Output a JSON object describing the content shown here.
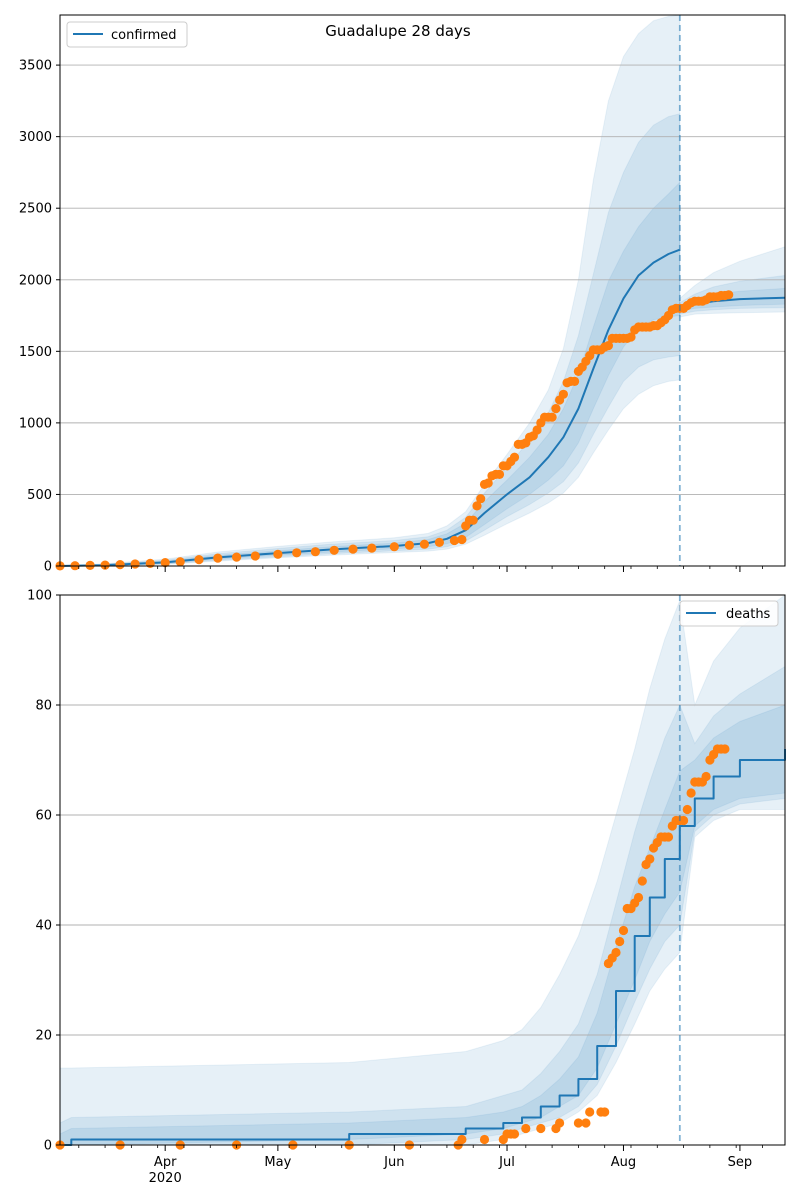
{
  "figure_title": "Guadalupe 28 days",
  "x_ticks": [
    {
      "label": "Apr",
      "date": "2020-04-01"
    },
    {
      "label": "May",
      "date": "2020-05-01"
    },
    {
      "label": "Jun",
      "date": "2020-06-01"
    },
    {
      "label": "Jul",
      "date": "2020-07-01"
    },
    {
      "label": "Aug",
      "date": "2020-08-01"
    },
    {
      "label": "Sep",
      "date": "2020-09-01"
    }
  ],
  "x_year_label": "2020",
  "colors": {
    "model": "#1f77b4",
    "observed": "#ff7f0e",
    "grid": "#b0b0b0"
  },
  "chart_data": [
    {
      "type": "line",
      "legend": "confirmed",
      "legend_position": "top-left",
      "xlim": [
        "2020-03-04",
        "2020-09-13"
      ],
      "ylim": [
        0,
        3850
      ],
      "y_ticks": [
        0,
        500,
        1000,
        1500,
        2000,
        2500,
        3000,
        3500
      ],
      "grid": "horizontal",
      "forecast_start": "2020-08-16",
      "model_median": {
        "x": [
          "2020-03-04",
          "2020-03-15",
          "2020-04-01",
          "2020-04-15",
          "2020-05-01",
          "2020-05-15",
          "2020-06-01",
          "2020-06-10",
          "2020-06-15",
          "2020-06-20",
          "2020-06-25",
          "2020-07-01",
          "2020-07-07",
          "2020-07-12",
          "2020-07-16",
          "2020-07-20",
          "2020-07-24",
          "2020-07-28",
          "2020-08-01",
          "2020-08-05",
          "2020-08-09",
          "2020-08-13",
          "2020-08-16"
        ],
        "y": [
          0,
          5,
          25,
          60,
          90,
          115,
          140,
          160,
          190,
          250,
          370,
          500,
          620,
          760,
          900,
          1100,
          1380,
          1650,
          1870,
          2030,
          2120,
          2180,
          2210
        ]
      },
      "model_bands": [
        {
          "lower": [
            0,
            3,
            18,
            48,
            75,
            97,
            120,
            135,
            155,
            200,
            290,
            400,
            500,
            600,
            700,
            860,
            1100,
            1330,
            1530,
            1660,
            1720,
            1740,
            1750
          ],
          "upper": [
            2,
            8,
            33,
            74,
            107,
            135,
            160,
            185,
            225,
            300,
            450,
            600,
            760,
            920,
            1100,
            1340,
            1670,
            1990,
            2200,
            2370,
            2500,
            2600,
            2680
          ]
        },
        {
          "lower": [
            0,
            2,
            14,
            40,
            65,
            85,
            106,
            118,
            135,
            175,
            250,
            345,
            430,
            510,
            590,
            720,
            920,
            1110,
            1290,
            1390,
            1440,
            1460,
            1470
          ],
          "upper": [
            3,
            11,
            40,
            86,
            122,
            152,
            178,
            205,
            250,
            340,
            510,
            690,
            880,
            1070,
            1290,
            1610,
            2040,
            2470,
            2750,
            2960,
            3080,
            3140,
            3160
          ]
        },
        {
          "lower": [
            0,
            1,
            11,
            34,
            57,
            75,
            94,
            104,
            118,
            152,
            215,
            295,
            370,
            440,
            510,
            620,
            790,
            950,
            1100,
            1200,
            1260,
            1290,
            1300
          ],
          "upper": [
            4,
            14,
            48,
            98,
            137,
            168,
            197,
            228,
            280,
            380,
            570,
            780,
            1000,
            1230,
            1520,
            2000,
            2700,
            3250,
            3560,
            3720,
            3810,
            3840,
            3850
          ]
        }
      ],
      "forecast_median": {
        "x": [
          "2020-08-16",
          "2020-08-20",
          "2020-08-25",
          "2020-09-01",
          "2020-09-13"
        ],
        "y": [
          1800,
          1830,
          1850,
          1865,
          1875
        ]
      },
      "forecast_bands": [
        {
          "lower": [
            1780,
            1800,
            1810,
            1820,
            1830
          ],
          "upper": [
            1820,
            1870,
            1900,
            1920,
            1940
          ]
        },
        {
          "lower": [
            1760,
            1780,
            1790,
            1800,
            1805
          ],
          "upper": [
            1840,
            1900,
            1950,
            1990,
            2030
          ]
        },
        {
          "lower": [
            1740,
            1760,
            1765,
            1770,
            1775
          ],
          "upper": [
            1870,
            1960,
            2050,
            2130,
            2230
          ]
        }
      ],
      "observed": {
        "x": [
          "2020-03-04",
          "2020-03-08",
          "2020-03-12",
          "2020-03-16",
          "2020-03-20",
          "2020-03-24",
          "2020-03-28",
          "2020-04-01",
          "2020-04-05",
          "2020-04-10",
          "2020-04-15",
          "2020-04-20",
          "2020-04-25",
          "2020-05-01",
          "2020-05-06",
          "2020-05-11",
          "2020-05-16",
          "2020-05-21",
          "2020-05-26",
          "2020-06-01",
          "2020-06-05",
          "2020-06-09",
          "2020-06-13",
          "2020-06-17",
          "2020-06-19",
          "2020-06-20",
          "2020-06-21",
          "2020-06-22",
          "2020-06-23",
          "2020-06-24",
          "2020-06-25",
          "2020-06-26",
          "2020-06-27",
          "2020-06-28",
          "2020-06-29",
          "2020-06-30",
          "2020-07-01",
          "2020-07-02",
          "2020-07-03",
          "2020-07-04",
          "2020-07-05",
          "2020-07-06",
          "2020-07-07",
          "2020-07-08",
          "2020-07-09",
          "2020-07-10",
          "2020-07-11",
          "2020-07-12",
          "2020-07-13",
          "2020-07-14",
          "2020-07-15",
          "2020-07-16",
          "2020-07-17",
          "2020-07-18",
          "2020-07-19",
          "2020-07-20",
          "2020-07-21",
          "2020-07-22",
          "2020-07-23",
          "2020-07-24",
          "2020-07-25",
          "2020-07-26",
          "2020-07-27",
          "2020-07-28",
          "2020-07-29",
          "2020-07-30",
          "2020-07-31",
          "2020-08-01",
          "2020-08-02",
          "2020-08-03",
          "2020-08-04",
          "2020-08-05",
          "2020-08-06",
          "2020-08-07",
          "2020-08-08",
          "2020-08-09",
          "2020-08-10",
          "2020-08-11",
          "2020-08-12",
          "2020-08-13",
          "2020-08-14",
          "2020-08-15",
          "2020-08-16",
          "2020-08-17",
          "2020-08-18",
          "2020-08-19",
          "2020-08-20",
          "2020-08-21",
          "2020-08-22",
          "2020-08-23",
          "2020-08-24",
          "2020-08-25",
          "2020-08-26",
          "2020-08-27",
          "2020-08-28",
          "2020-08-29"
        ],
        "y": [
          1,
          2,
          4,
          6,
          10,
          14,
          18,
          24,
          30,
          45,
          55,
          62,
          70,
          82,
          92,
          100,
          110,
          118,
          125,
          135,
          145,
          152,
          165,
          178,
          185,
          280,
          320,
          320,
          420,
          470,
          570,
          580,
          630,
          640,
          640,
          700,
          700,
          730,
          760,
          850,
          850,
          860,
          900,
          910,
          950,
          1000,
          1040,
          1040,
          1040,
          1100,
          1160,
          1200,
          1280,
          1290,
          1290,
          1360,
          1390,
          1430,
          1470,
          1510,
          1510,
          1510,
          1530,
          1540,
          1590,
          1590,
          1590,
          1590,
          1590,
          1600,
          1650,
          1670,
          1670,
          1670,
          1670,
          1680,
          1680,
          1700,
          1720,
          1750,
          1790,
          1800,
          1800,
          1800,
          1820,
          1840,
          1850,
          1850,
          1850,
          1860,
          1880,
          1880,
          1880,
          1890,
          1890,
          1895
        ]
      }
    },
    {
      "type": "line",
      "legend": "deaths",
      "legend_position": "top-right",
      "xlim": [
        "2020-03-04",
        "2020-09-13"
      ],
      "ylim": [
        0,
        100
      ],
      "y_ticks": [
        0,
        20,
        40,
        60,
        80,
        100
      ],
      "grid": "horizontal",
      "forecast_start": "2020-08-16",
      "model_median": {
        "x": [
          "2020-03-04",
          "2020-03-07",
          "2020-05-20",
          "2020-06-20",
          "2020-06-30",
          "2020-07-05",
          "2020-07-10",
          "2020-07-15",
          "2020-07-20",
          "2020-07-25",
          "2020-07-30",
          "2020-08-04",
          "2020-08-08",
          "2020-08-12",
          "2020-08-16",
          "2020-08-20",
          "2020-08-25",
          "2020-09-01",
          "2020-09-13"
        ],
        "y": [
          0,
          1,
          2,
          3,
          4,
          5,
          7,
          9,
          12,
          18,
          28,
          38,
          45,
          52,
          58,
          63,
          67,
          70,
          72
        ]
      },
      "model_bands": [
        {
          "lower": [
            0,
            0,
            1,
            2,
            3,
            4,
            5,
            7,
            9,
            14,
            22,
            30,
            37,
            42,
            46,
            58,
            61,
            63,
            64
          ],
          "upper": [
            2,
            3,
            4,
            5,
            6,
            7,
            9,
            12,
            16,
            24,
            36,
            47,
            54,
            61,
            68,
            70,
            74,
            77,
            80
          ]
        },
        {
          "lower": [
            0,
            0,
            0,
            1,
            2,
            3,
            4,
            5,
            7,
            11,
            18,
            26,
            32,
            37,
            40,
            57,
            60,
            62,
            63
          ],
          "upper": [
            4,
            5,
            6,
            7,
            9,
            10,
            13,
            17,
            22,
            31,
            44,
            57,
            66,
            74,
            80,
            73,
            78,
            82,
            87
          ]
        },
        {
          "lower": [
            0,
            0,
            0,
            0,
            1,
            2,
            3,
            4,
            6,
            9,
            15,
            22,
            28,
            32,
            35,
            56,
            59,
            61,
            61
          ],
          "upper": [
            14,
            14,
            15,
            17,
            19,
            21,
            25,
            31,
            38,
            48,
            60,
            72,
            83,
            92,
            99,
            80,
            88,
            94,
            100
          ]
        }
      ],
      "observed": {
        "x": [
          "2020-03-04",
          "2020-03-20",
          "2020-04-05",
          "2020-04-20",
          "2020-05-05",
          "2020-05-20",
          "2020-06-05",
          "2020-06-18",
          "2020-06-19",
          "2020-06-25",
          "2020-06-30",
          "2020-07-01",
          "2020-07-02",
          "2020-07-03",
          "2020-07-06",
          "2020-07-10",
          "2020-07-14",
          "2020-07-15",
          "2020-07-20",
          "2020-07-22",
          "2020-07-23",
          "2020-07-26",
          "2020-07-27",
          "2020-07-28",
          "2020-07-29",
          "2020-07-30",
          "2020-07-31",
          "2020-08-01",
          "2020-08-02",
          "2020-08-03",
          "2020-08-04",
          "2020-08-05",
          "2020-08-06",
          "2020-08-07",
          "2020-08-08",
          "2020-08-09",
          "2020-08-10",
          "2020-08-11",
          "2020-08-12",
          "2020-08-13",
          "2020-08-14",
          "2020-08-15",
          "2020-08-16",
          "2020-08-17",
          "2020-08-18",
          "2020-08-19",
          "2020-08-20",
          "2020-08-21",
          "2020-08-22",
          "2020-08-23",
          "2020-08-24",
          "2020-08-25",
          "2020-08-26",
          "2020-08-27",
          "2020-08-28"
        ],
        "y": [
          0,
          0,
          0,
          0,
          0,
          0,
          0,
          0,
          1,
          1,
          1,
          2,
          2,
          2,
          3,
          3,
          3,
          4,
          4,
          4,
          6,
          6,
          6,
          33,
          34,
          35,
          37,
          39,
          43,
          43,
          44,
          45,
          48,
          51,
          52,
          54,
          55,
          56,
          56,
          56,
          58,
          59,
          59,
          59,
          61,
          64,
          66,
          66,
          66,
          67,
          70,
          71,
          72,
          72,
          72
        ]
      }
    }
  ]
}
